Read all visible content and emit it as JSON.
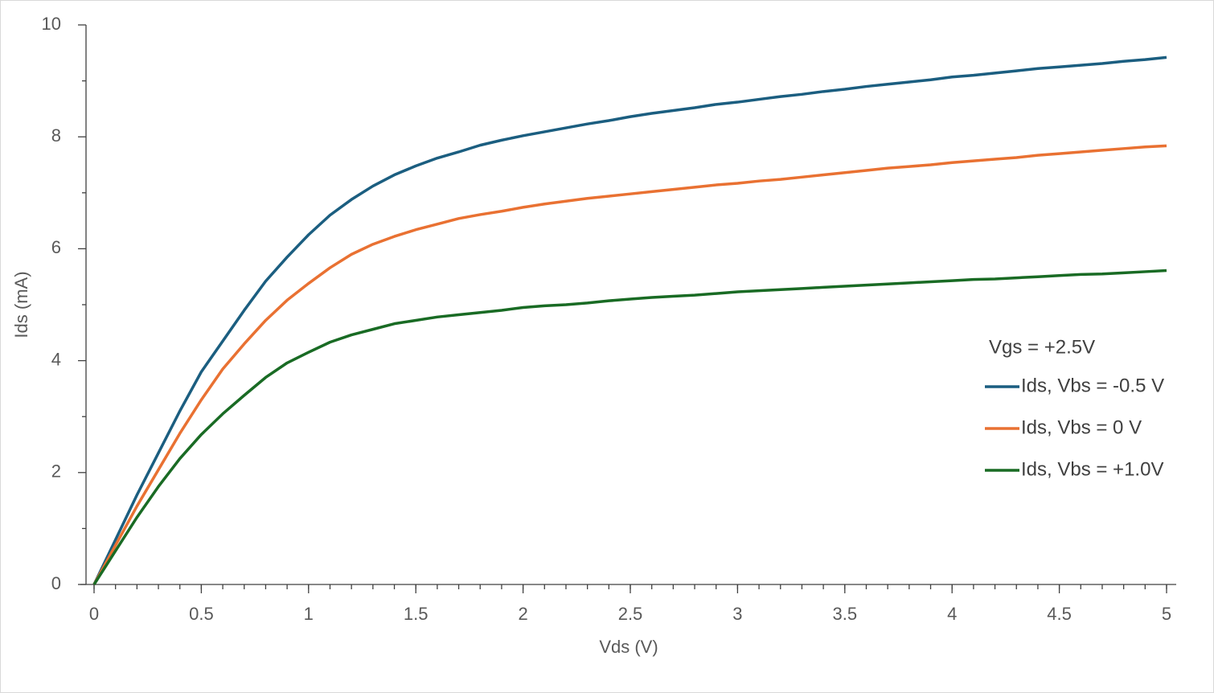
{
  "chart_data": {
    "type": "line",
    "xlabel": "Vds (V)",
    "ylabel": "Ids (mA)",
    "legend_title": "Vgs = +2.5V",
    "legend": "right",
    "x": [
      0,
      0.1,
      0.2,
      0.3,
      0.4,
      0.5,
      0.6,
      0.7,
      0.8,
      0.9,
      1,
      1.1,
      1.2,
      1.3,
      1.4,
      1.5,
      1.6,
      1.7,
      1.8,
      1.9,
      2,
      2.1,
      2.2,
      2.3,
      2.4,
      2.5,
      2.6,
      2.7,
      2.8,
      2.9,
      3,
      3.1,
      3.2,
      3.3,
      3.4,
      3.5,
      3.6,
      3.7,
      3.8,
      3.9,
      4,
      4.1,
      4.2,
      4.3,
      4.4,
      4.5,
      4.6,
      4.7,
      4.8,
      4.9,
      5
    ],
    "series": [
      {
        "name": "Ids, Vbs = -0.5 V",
        "color": "#1b5e80",
        "values": [
          0,
          0.8,
          1.6,
          2.35,
          3.1,
          3.8,
          4.35,
          4.9,
          5.42,
          5.85,
          6.25,
          6.6,
          6.88,
          7.12,
          7.32,
          7.48,
          7.62,
          7.73,
          7.85,
          7.94,
          8.02,
          8.09,
          8.16,
          8.23,
          8.29,
          8.36,
          8.42,
          8.47,
          8.52,
          8.58,
          8.62,
          8.67,
          8.72,
          8.76,
          8.81,
          8.85,
          8.9,
          8.94,
          8.98,
          9.02,
          9.07,
          9.1,
          9.14,
          9.18,
          9.22,
          9.25,
          9.28,
          9.31,
          9.35,
          9.38,
          9.42
        ]
      },
      {
        "name": "Ids, Vbs = 0 V",
        "color": "#e97132",
        "values": [
          0,
          0.7,
          1.4,
          2.05,
          2.7,
          3.3,
          3.85,
          4.3,
          4.72,
          5.08,
          5.38,
          5.66,
          5.9,
          6.08,
          6.22,
          6.34,
          6.44,
          6.54,
          6.61,
          6.67,
          6.74,
          6.8,
          6.85,
          6.9,
          6.94,
          6.98,
          7.02,
          7.06,
          7.1,
          7.14,
          7.17,
          7.21,
          7.24,
          7.28,
          7.32,
          7.36,
          7.4,
          7.44,
          7.47,
          7.5,
          7.54,
          7.57,
          7.6,
          7.63,
          7.67,
          7.7,
          7.73,
          7.76,
          7.79,
          7.82,
          7.84
        ]
      },
      {
        "name": "Ids, Vbs = +1.0V",
        "color": "#196b24",
        "values": [
          0,
          0.6,
          1.2,
          1.75,
          2.25,
          2.68,
          3.05,
          3.38,
          3.7,
          3.96,
          4.15,
          4.33,
          4.46,
          4.56,
          4.66,
          4.72,
          4.78,
          4.82,
          4.86,
          4.9,
          4.95,
          4.98,
          5,
          5.03,
          5.07,
          5.1,
          5.13,
          5.15,
          5.17,
          5.2,
          5.23,
          5.25,
          5.27,
          5.29,
          5.31,
          5.33,
          5.35,
          5.37,
          5.39,
          5.41,
          5.43,
          5.45,
          5.46,
          5.48,
          5.5,
          5.52,
          5.54,
          5.55,
          5.57,
          5.59,
          5.61
        ]
      }
    ],
    "xlim": [
      0,
      5
    ],
    "xticks": [
      0,
      0.5,
      1,
      1.5,
      2,
      2.5,
      3,
      3.5,
      4,
      4.5,
      5
    ],
    "ylim": [
      0,
      10
    ],
    "yticks": [
      0,
      2,
      4,
      6,
      8,
      10
    ]
  }
}
